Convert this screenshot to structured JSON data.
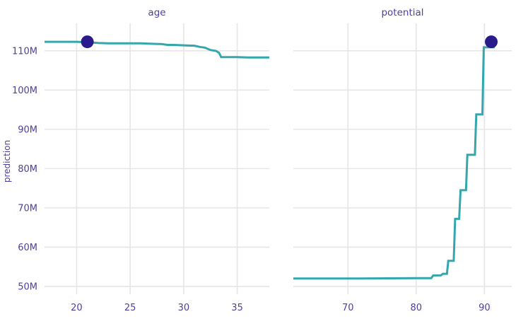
{
  "chart_data": {
    "type": "line",
    "ylabel": "prediction",
    "y_ticks": [
      {
        "value": 110000000,
        "label": "110M"
      },
      {
        "value": 100000000,
        "label": "100M"
      },
      {
        "value": 90000000,
        "label": "90M"
      },
      {
        "value": 80000000,
        "label": "80M"
      },
      {
        "value": 70000000,
        "label": "70M"
      },
      {
        "value": 60000000,
        "label": "60M"
      },
      {
        "value": 50000000,
        "label": "50M"
      }
    ],
    "ylim": [
      48000000,
      117000000
    ],
    "colors": {
      "line": "#34a7ad",
      "point": "#2a1b8d",
      "text": "#4b3fa2",
      "grid": "#e6e6e6"
    },
    "panels": [
      {
        "title": "age",
        "xlim": [
          17,
          38
        ],
        "x_ticks": [
          {
            "value": 20,
            "label": "20"
          },
          {
            "value": 25,
            "label": "25"
          },
          {
            "value": 30,
            "label": "30"
          },
          {
            "value": 35,
            "label": "35"
          }
        ],
        "series": [
          {
            "x": [
              17,
              20,
              21,
              22,
              23,
              24,
              25,
              26,
              27,
              28,
              28.5,
              29,
              30,
              31,
              31.5,
              32,
              32.5,
              33,
              33.3,
              33.5,
              34,
              35,
              36,
              37,
              38
            ],
            "y": [
              112300000,
              112300000,
              112200000,
              112000000,
              111900000,
              111900000,
              111900000,
              111900000,
              111800000,
              111700000,
              111500000,
              111500000,
              111400000,
              111300000,
              111000000,
              110800000,
              110200000,
              110000000,
              109500000,
              108400000,
              108400000,
              108400000,
              108300000,
              108300000,
              108300000
            ]
          }
        ],
        "observation": {
          "x": 21,
          "y": 112300000
        }
      },
      {
        "title": "potential",
        "xlim": [
          62,
          94
        ],
        "x_ticks": [
          {
            "value": 70,
            "label": "70"
          },
          {
            "value": 80,
            "label": "80"
          },
          {
            "value": 90,
            "label": "90"
          }
        ],
        "series": [
          {
            "x": [
              62,
              70,
              80,
              82.2,
              82.5,
              83.6,
              83.9,
              84.5,
              84.7,
              85.5,
              85.7,
              86.3,
              86.5,
              87.3,
              87.5,
              88.6,
              88.8,
              89.7,
              89.9,
              91.5
            ],
            "y": [
              52000000,
              52000000,
              52100000,
              52100000,
              52800000,
              52800000,
              53200000,
              53200000,
              56500000,
              56500000,
              67200000,
              67200000,
              74500000,
              74500000,
              83500000,
              83500000,
              93800000,
              93800000,
              110900000,
              110900000
            ]
          }
        ],
        "observation": {
          "x": 91,
          "y": 112300000
        }
      }
    ]
  }
}
